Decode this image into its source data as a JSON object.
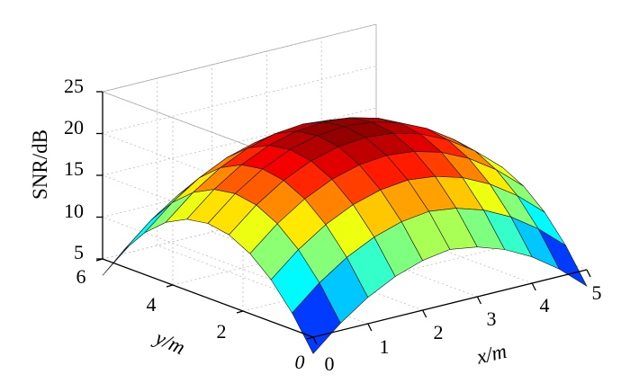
{
  "chart_data": {
    "type": "surface3d",
    "xlabel": "x/m",
    "ylabel": "y/m",
    "zlabel": "SNR/dB",
    "xlim": [
      0,
      5
    ],
    "ylim": [
      0,
      6
    ],
    "zlim": [
      5,
      25
    ],
    "x_ticks": [
      "0",
      "1",
      "2",
      "3",
      "4",
      "5"
    ],
    "y_ticks": [
      "0",
      "2",
      "4",
      "6"
    ],
    "z_ticks": [
      "5",
      "10",
      "15",
      "20",
      "25"
    ],
    "colormap": "jet",
    "grid": true,
    "x": [
      0,
      0.5,
      1,
      1.5,
      2,
      2.5,
      3,
      3.5,
      4,
      4.5,
      5
    ],
    "y": [
      0,
      0.6,
      1.2,
      1.8,
      2.4,
      3.0,
      3.6,
      4.2,
      4.8,
      5.4,
      6.0
    ],
    "z_model": {
      "peak_db": 21.5,
      "peak_x": 2.5,
      "peak_y": 3.0,
      "corner_db": 4.5,
      "min_db": 3.0
    }
  }
}
